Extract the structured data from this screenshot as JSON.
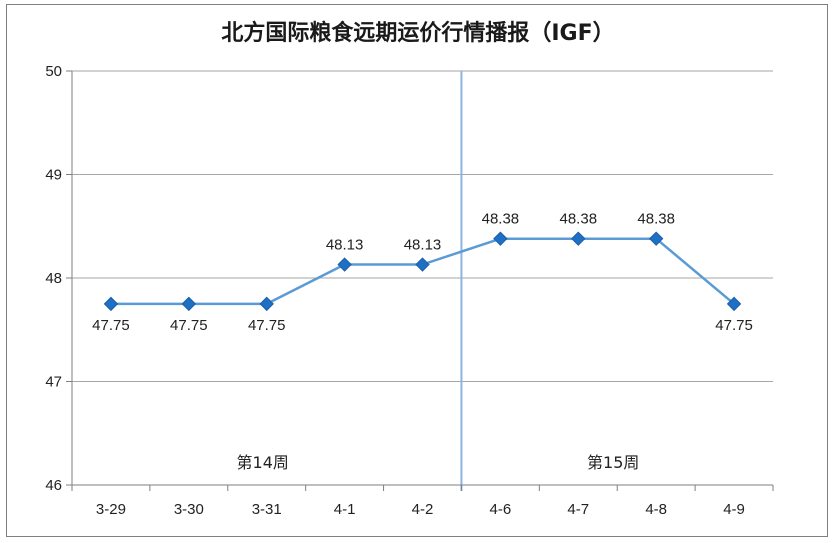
{
  "chart_data": {
    "type": "line",
    "title": "北方国际粮食远期运价行情播报（IGF）",
    "categories": [
      "3-29",
      "3-30",
      "3-31",
      "4-1",
      "4-2",
      "4-6",
      "4-7",
      "4-8",
      "4-9"
    ],
    "series": [
      {
        "values": [
          47.75,
          47.75,
          47.75,
          48.13,
          48.13,
          48.38,
          48.38,
          48.38,
          47.75
        ]
      }
    ],
    "data_labels": [
      "47.75",
      "47.75",
      "47.75",
      "48.13",
      "48.13",
      "48.38",
      "48.38",
      "48.38",
      "47.75"
    ],
    "data_label_position": [
      "below",
      "below",
      "below",
      "above",
      "above",
      "above",
      "above",
      "above",
      "below"
    ],
    "ylim": [
      46,
      50
    ],
    "yticks": [
      "46",
      "47",
      "48",
      "49",
      "50"
    ],
    "grid": true,
    "week_groups": [
      {
        "label": "第14周",
        "start": 0,
        "end": 4
      },
      {
        "label": "第15周",
        "start": 5,
        "end": 8
      }
    ],
    "colors": {
      "line": "#5b9bd5",
      "marker": "#1f6fc4",
      "marker_edge": "#1a5fa8",
      "grid": "#a6a6a6",
      "divider": "#8db4e2"
    }
  }
}
